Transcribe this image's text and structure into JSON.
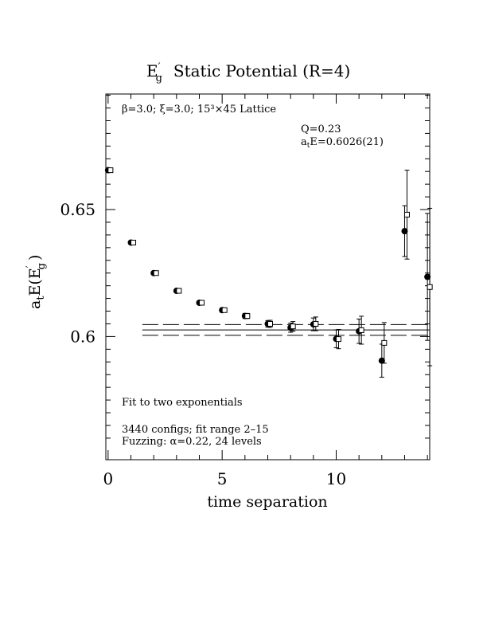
{
  "chart_data": {
    "type": "scatter",
    "title": {
      "main": "E",
      "main_sub": "g",
      "main_sup": "′",
      "rest": "Static Potential (R=4)"
    },
    "subtitle": "β=3.0; ξ=3.0; 15³×45 Lattice",
    "xlabel": "time separation",
    "ylabel": {
      "a": "a",
      "a_sub": "t",
      "E": "E(E",
      "E_sup": "′",
      "E_sub": "g",
      "close": ")"
    },
    "xlim": [
      -0.1,
      14.1
    ],
    "ylim": [
      0.5515,
      0.6955
    ],
    "x_ticks": [
      0,
      5,
      10
    ],
    "x_tick_labels": [
      "0",
      "5",
      "10"
    ],
    "y_ticks": [
      0.6,
      0.65
    ],
    "y_tick_labels": [
      "0.6",
      "0.65"
    ],
    "annotations": {
      "fit_q": "Q=0.23",
      "fit_energy_a": "a",
      "fit_energy_sub": "t",
      "fit_energy_rest": "E=0.6026(21)",
      "fit_method": "Fit to two exponentials",
      "configs": "3440 configs; fit range 2–15",
      "fuzzing": "Fuzzing: α=0.22, 24 levels"
    },
    "fit": {
      "value": 0.6026,
      "error": 0.0021,
      "x_start": 1.5,
      "x_end": 14.1
    },
    "series": [
      {
        "marker": "filled-circle",
        "points": [
          {
            "x": 0,
            "y": 0.6655,
            "err": 0.0005
          },
          {
            "x": 1,
            "y": 0.637,
            "err": 0.0005
          },
          {
            "x": 2,
            "y": 0.625,
            "err": 0.0005
          },
          {
            "x": 3,
            "y": 0.618,
            "err": 0.0006
          },
          {
            "x": 4,
            "y": 0.6133,
            "err": 0.0007
          },
          {
            "x": 5,
            "y": 0.6104,
            "err": 0.0008
          },
          {
            "x": 6,
            "y": 0.6081,
            "err": 0.001
          },
          {
            "x": 7,
            "y": 0.605,
            "err": 0.0013
          },
          {
            "x": 8,
            "y": 0.6035,
            "err": 0.0018
          },
          {
            "x": 9,
            "y": 0.6048,
            "err": 0.0025
          },
          {
            "x": 10,
            "y": 0.5991,
            "err": 0.0035
          },
          {
            "x": 11,
            "y": 0.6021,
            "err": 0.0048
          },
          {
            "x": 12,
            "y": 0.5905,
            "err": 0.0065
          },
          {
            "x": 13,
            "y": 0.6415,
            "err": 0.01
          },
          {
            "x": 14,
            "y": 0.6235,
            "err": 0.025
          }
        ]
      },
      {
        "marker": "open-square",
        "points": [
          {
            "x": 0,
            "y": 0.6655,
            "err": 0.0005
          },
          {
            "x": 1,
            "y": 0.637,
            "err": 0.0005
          },
          {
            "x": 2,
            "y": 0.625,
            "err": 0.0005
          },
          {
            "x": 3,
            "y": 0.618,
            "err": 0.0006
          },
          {
            "x": 4,
            "y": 0.6133,
            "err": 0.0007
          },
          {
            "x": 5,
            "y": 0.6104,
            "err": 0.0008
          },
          {
            "x": 6,
            "y": 0.6081,
            "err": 0.001
          },
          {
            "x": 7,
            "y": 0.605,
            "err": 0.0014
          },
          {
            "x": 8,
            "y": 0.604,
            "err": 0.0019
          },
          {
            "x": 9,
            "y": 0.605,
            "err": 0.0027
          },
          {
            "x": 10,
            "y": 0.599,
            "err": 0.0038
          },
          {
            "x": 11,
            "y": 0.6025,
            "err": 0.0055
          },
          {
            "x": 12,
            "y": 0.5975,
            "err": 0.008
          },
          {
            "x": 13,
            "y": 0.648,
            "err": 0.0175
          },
          {
            "x": 14,
            "y": 0.6195,
            "err": 0.031
          }
        ]
      }
    ]
  }
}
